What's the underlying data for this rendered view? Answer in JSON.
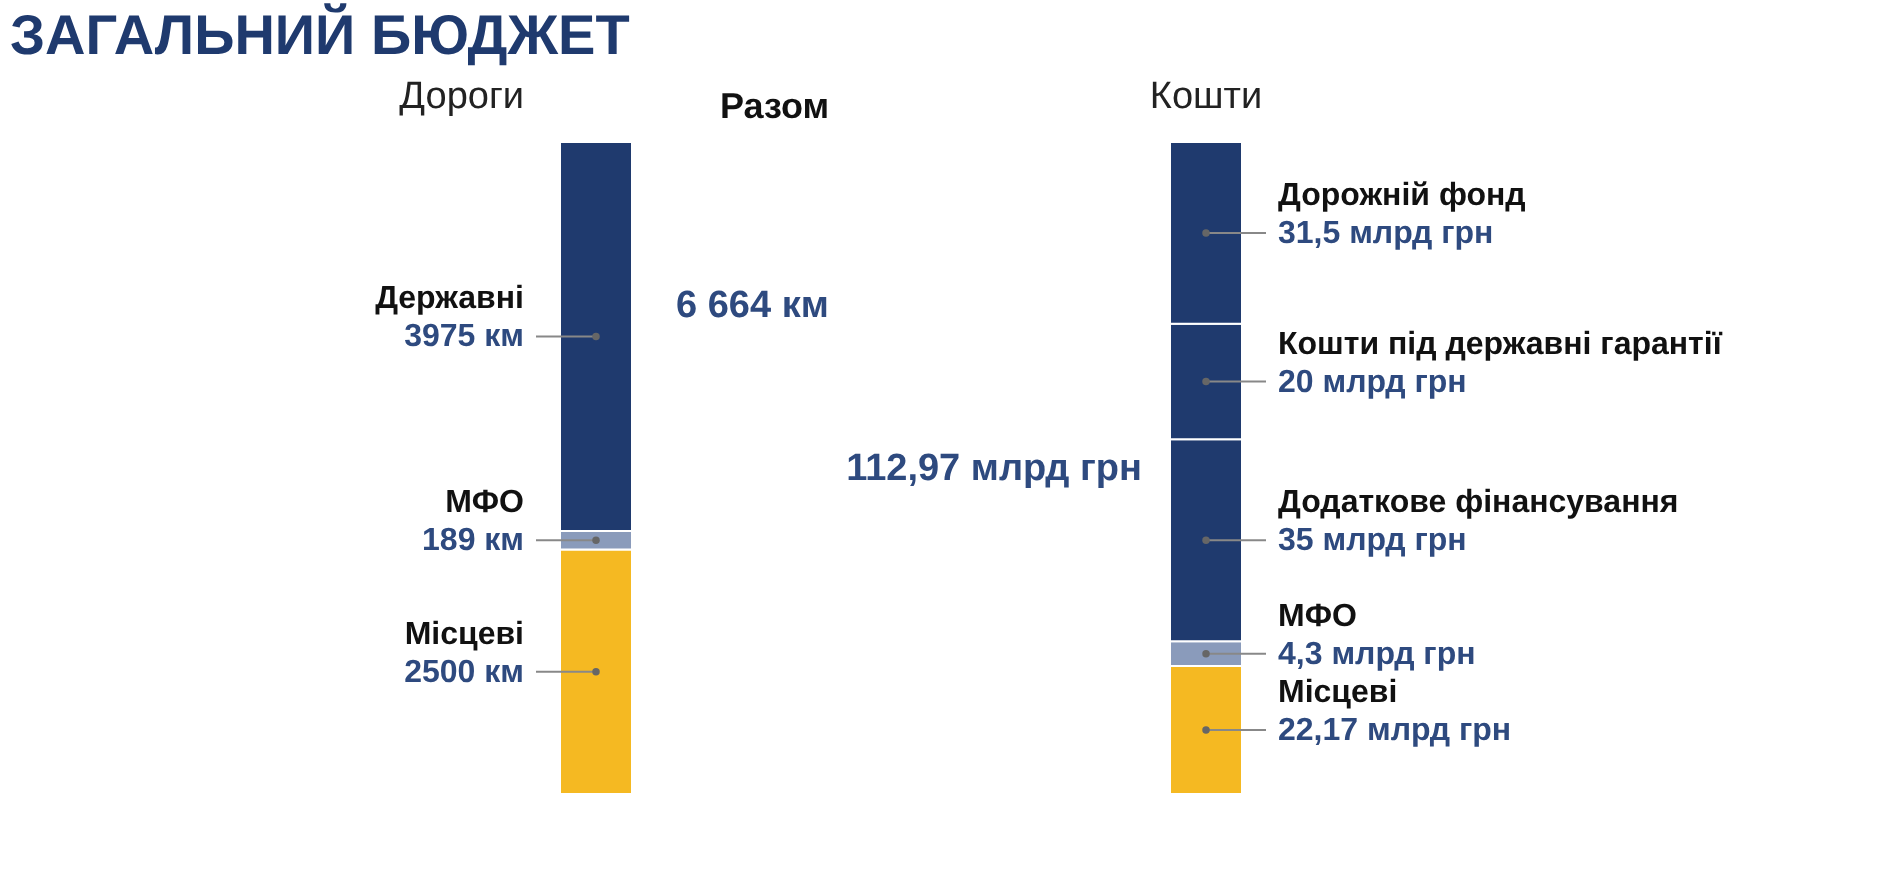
{
  "chart_data": [
    {
      "type": "bar",
      "stacked": true,
      "title": "ЗАГАЛЬНИЙ БЮДЖЕТ",
      "subtitle": "Дороги",
      "categories": [
        null
      ],
      "tick_labels": false,
      "annotations": [
        "Разом"
      ],
      "totals": [
        "6 664 км"
      ],
      "series": [
        {
          "name": "Місцеві",
          "color": "#f5b922",
          "values": [
            2500
          ],
          "value_labels": [
            "2500 км"
          ]
        },
        {
          "name": "МФО",
          "color": "#8a9bbb",
          "values": [
            189
          ],
          "value_labels": [
            "189 км"
          ]
        },
        {
          "name": "Державні",
          "color": "#1f3a6e",
          "values": [
            3975
          ],
          "value_labels": [
            "3975 км"
          ]
        }
      ]
    },
    {
      "type": "bar",
      "stacked": true,
      "subtitle": "Кошти",
      "categories": [
        null
      ],
      "tick_labels": false,
      "totals": [
        "112,97 млрд грн"
      ],
      "series": [
        {
          "name": "Місцеві",
          "color": "#f5b922",
          "values": [
            22.17
          ],
          "value_labels": [
            "22,17 млрд грн"
          ]
        },
        {
          "name": "МФО",
          "color": "#8a9bbb",
          "values": [
            4.3
          ],
          "value_labels": [
            "4,3 млрд грн"
          ]
        },
        {
          "name": "Додаткове фінансування",
          "color": "#1f3a6e",
          "values": [
            35
          ],
          "value_labels": [
            "35 млрд грн"
          ]
        },
        {
          "name": "Кошти під державні гарантії",
          "color": "#1f3a6e",
          "values": [
            20
          ],
          "value_labels": [
            "20 млрд грн"
          ]
        },
        {
          "name": "Дорожній фонд",
          "color": "#1f3a6e",
          "values": [
            31.5
          ],
          "value_labels": [
            "31,5 млрд грн"
          ]
        }
      ]
    }
  ]
}
